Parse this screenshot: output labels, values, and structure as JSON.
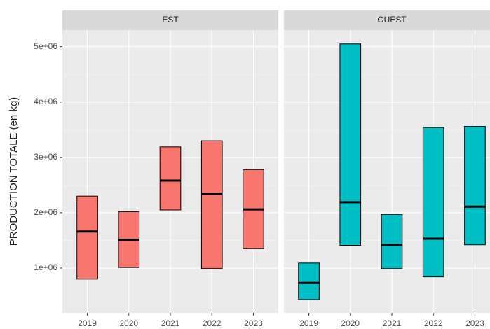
{
  "chart_data": [
    {
      "type": "crossbar",
      "title": "EST",
      "ylabel": "PRODUCTION TOTALE (en kg)",
      "categories": [
        "2019",
        "2020",
        "2021",
        "2022",
        "2023"
      ],
      "series": [
        {
          "color": "#f8766d",
          "low": [
            800000,
            1010000,
            2050000,
            990000,
            1350000
          ],
          "values": [
            1660000,
            1510000,
            2580000,
            2340000,
            2060000
          ],
          "high": [
            2300000,
            2020000,
            3190000,
            3300000,
            2780000
          ]
        }
      ],
      "ylim": [
        190000,
        5300000
      ],
      "yticks": [
        {
          "value": 1000000,
          "label": "1e+06"
        },
        {
          "value": 2000000,
          "label": "2e+06"
        },
        {
          "value": 3000000,
          "label": "3e+06"
        },
        {
          "value": 4000000,
          "label": "4e+06"
        },
        {
          "value": 5000000,
          "label": "5e+06"
        }
      ],
      "grid": true
    },
    {
      "type": "crossbar",
      "title": "OUEST",
      "categories": [
        "2019",
        "2020",
        "2021",
        "2022",
        "2023"
      ],
      "series": [
        {
          "color": "#00bfc4",
          "low": [
            430000,
            1410000,
            990000,
            840000,
            1420000
          ],
          "values": [
            730000,
            2190000,
            1420000,
            1530000,
            2110000
          ],
          "high": [
            1090000,
            5050000,
            1970000,
            3540000,
            3560000
          ]
        }
      ],
      "ylim": [
        190000,
        5300000
      ],
      "yticks": [
        {
          "value": 1000000,
          "label": "1e+06"
        },
        {
          "value": 2000000,
          "label": "2e+06"
        },
        {
          "value": 3000000,
          "label": "3e+06"
        },
        {
          "value": 4000000,
          "label": "4e+06"
        },
        {
          "value": 5000000,
          "label": "5e+06"
        }
      ],
      "grid": true
    }
  ]
}
